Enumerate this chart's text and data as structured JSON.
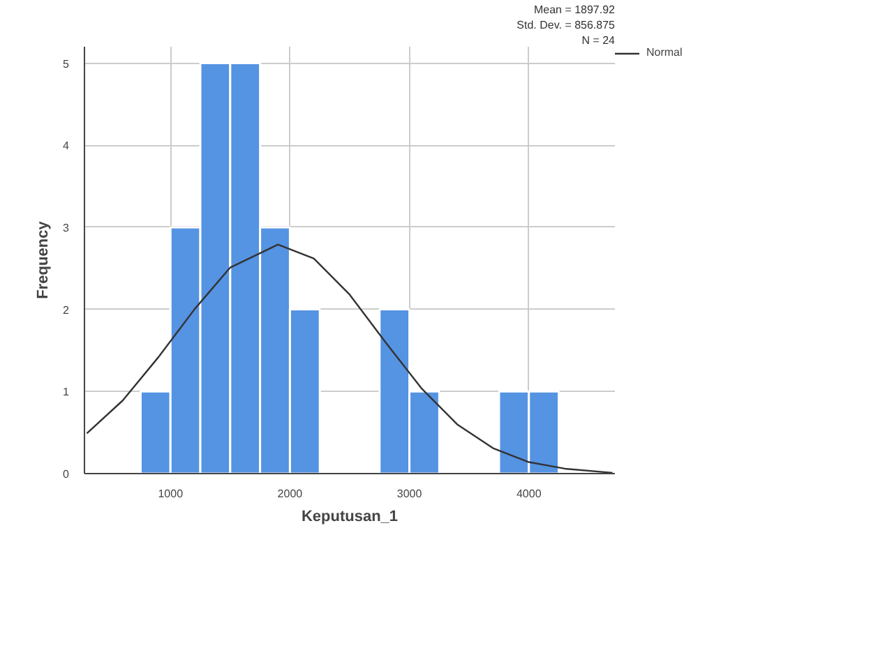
{
  "chart_data": {
    "type": "histogram",
    "xlabel": "Keputusan_1",
    "ylabel": "Frequency",
    "bins": [
      750,
      1000,
      1250,
      1500,
      1750,
      2000,
      2250,
      2500,
      2750,
      3000,
      3250,
      3500,
      3750,
      4000,
      4250
    ],
    "values": [
      1,
      3,
      5,
      5,
      3,
      2,
      0,
      0,
      2,
      1,
      0,
      0,
      1,
      1
    ],
    "color": "#5593e3",
    "series": [
      {
        "name": "Normal",
        "type": "line",
        "color": "#333333",
        "x": [
          300,
          600,
          900,
          1200,
          1500,
          1900,
          2200,
          2500,
          2800,
          3100,
          3400,
          3700,
          4000,
          4300,
          4700
        ],
        "values": [
          0.49,
          0.89,
          1.42,
          2.0,
          2.51,
          2.79,
          2.62,
          2.18,
          1.6,
          1.04,
          0.6,
          0.31,
          0.14,
          0.06,
          0.01
        ]
      }
    ],
    "xlim": [
      280,
      4720
    ],
    "xticks": [
      1000,
      2000,
      3000,
      4000
    ],
    "ylim": [
      0,
      5.2
    ],
    "yticks": [
      0,
      1,
      2,
      3,
      4,
      5
    ],
    "grid": true,
    "legend": "top right",
    "annotations": [
      "Mean = 1897.92",
      "Std. Dev. = 856.875",
      "N = 24"
    ]
  }
}
